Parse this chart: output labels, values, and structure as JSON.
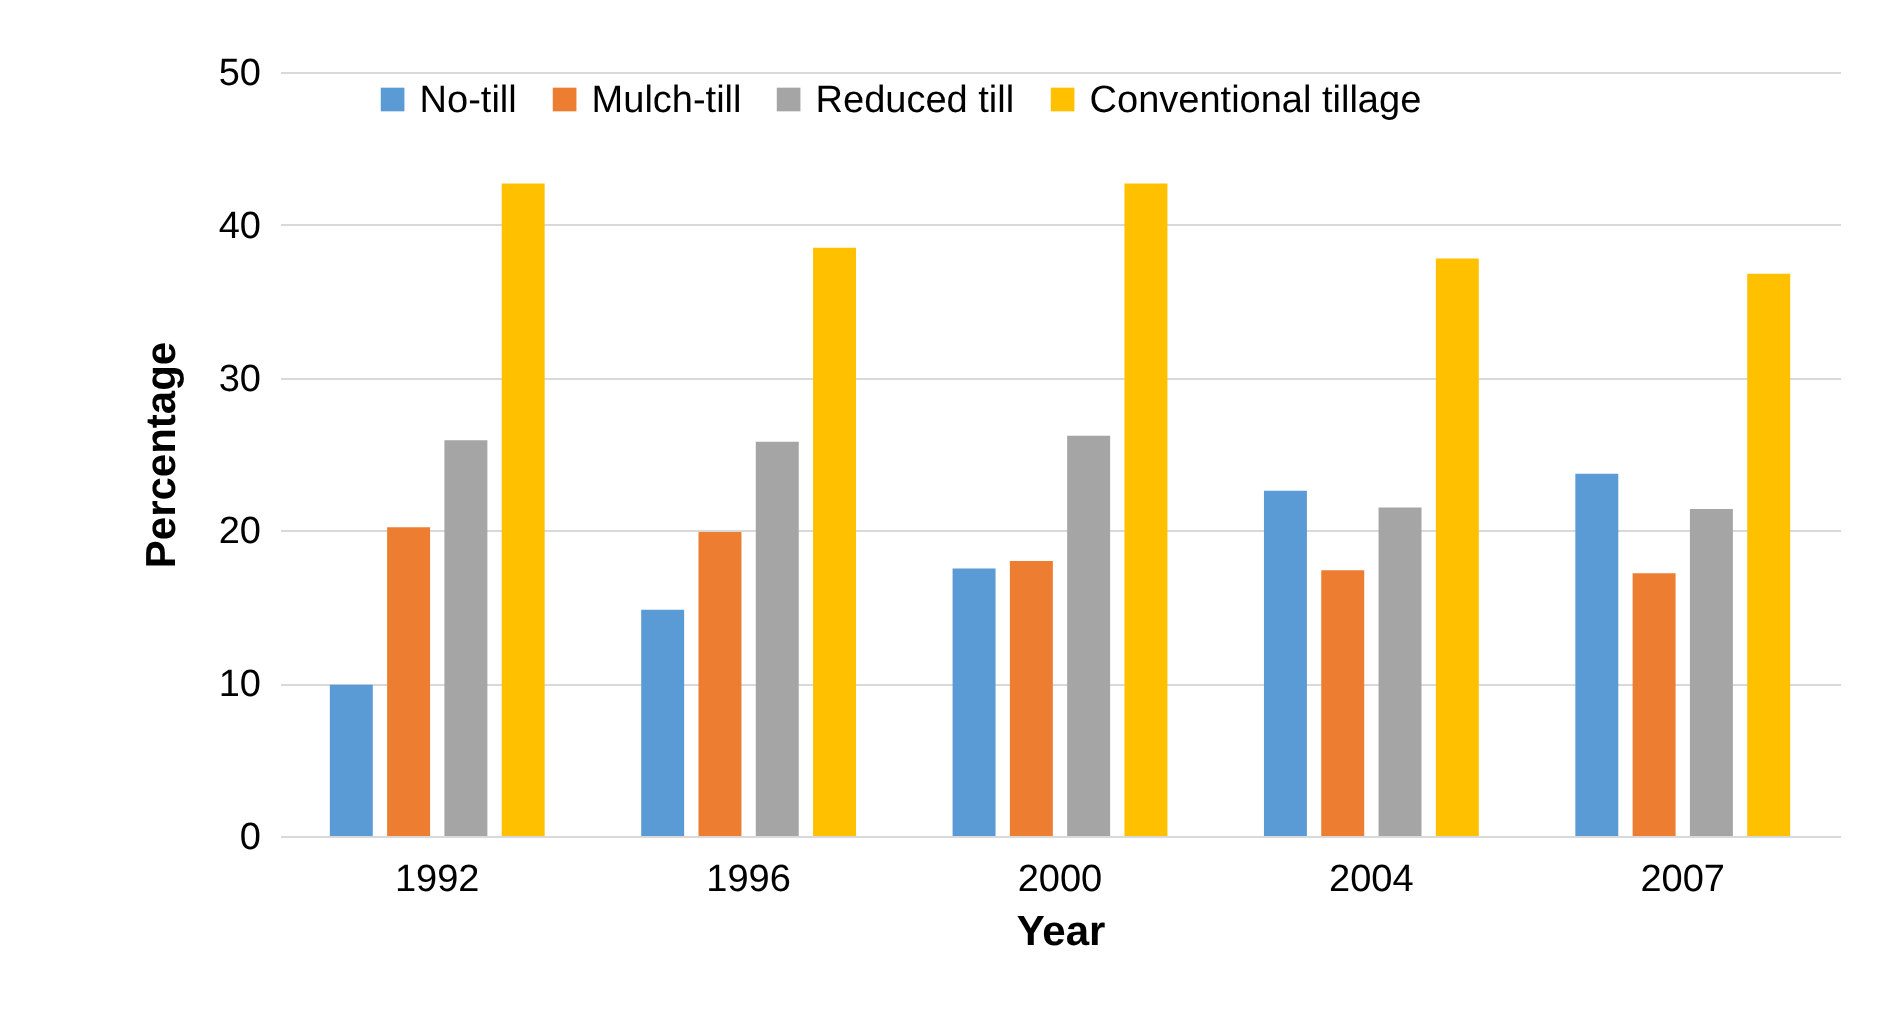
{
  "chart_data": {
    "type": "bar",
    "xlabel": "Year",
    "ylabel": "Percentage",
    "categories": [
      "1992",
      "1996",
      "2000",
      "2004",
      "2007"
    ],
    "series": [
      {
        "name": "No-till",
        "color": "#5b9bd5",
        "values": [
          9.9,
          14.8,
          17.5,
          22.6,
          23.7
        ]
      },
      {
        "name": "Mulch-till",
        "color": "#ed7d31",
        "values": [
          20.2,
          19.9,
          18.0,
          17.4,
          17.2
        ]
      },
      {
        "name": "Reduced till",
        "color": "#a5a5a5",
        "values": [
          25.9,
          25.8,
          26.2,
          21.5,
          21.4
        ]
      },
      {
        "name": "Conventional tillage",
        "color": "#ffc000",
        "values": [
          42.7,
          38.5,
          42.7,
          37.8,
          36.8
        ]
      }
    ],
    "ylim": [
      0,
      50
    ],
    "yticks": [
      0,
      10,
      20,
      30,
      40,
      50
    ],
    "grid": "y",
    "legend": "top"
  }
}
